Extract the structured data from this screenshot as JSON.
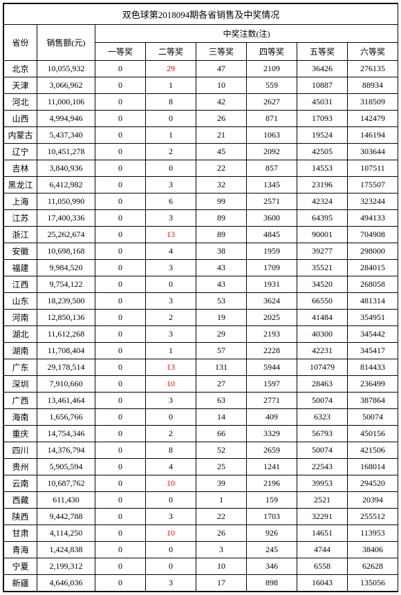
{
  "title": "双色球第2018094期各省销售及中奖情况",
  "headers": {
    "province": "省份",
    "sales": "销售额(元)",
    "prizeCount": "中奖注数(注)",
    "prizes": [
      "一等奖",
      "二等奖",
      "三等奖",
      "四等奖",
      "五等奖",
      "六等奖"
    ]
  },
  "rows": [
    {
      "province": "北京",
      "sales": "10,055,932",
      "p1": "0",
      "p2": "29",
      "p2red": true,
      "p3": "47",
      "p4": "2109",
      "p5": "36426",
      "p6": "276135"
    },
    {
      "province": "天津",
      "sales": "3,066,962",
      "p1": "0",
      "p2": "1",
      "p3": "10",
      "p4": "559",
      "p5": "10887",
      "p6": "88934"
    },
    {
      "province": "河北",
      "sales": "11,000,106",
      "p1": "0",
      "p2": "8",
      "p3": "42",
      "p4": "2627",
      "p5": "45031",
      "p6": "318509"
    },
    {
      "province": "山西",
      "sales": "4,994,946",
      "p1": "0",
      "p2": "0",
      "p3": "26",
      "p4": "871",
      "p5": "17093",
      "p6": "142479"
    },
    {
      "province": "内蒙古",
      "sales": "5,437,340",
      "p1": "0",
      "p2": "1",
      "p3": "21",
      "p4": "1063",
      "p5": "19524",
      "p6": "146194"
    },
    {
      "province": "辽宁",
      "sales": "10,451,278",
      "p1": "0",
      "p2": "2",
      "p3": "45",
      "p4": "2092",
      "p5": "42505",
      "p6": "303644"
    },
    {
      "province": "吉林",
      "sales": "3,840,936",
      "p1": "0",
      "p2": "0",
      "p3": "22",
      "p4": "857",
      "p5": "14553",
      "p6": "107511"
    },
    {
      "province": "黑龙江",
      "sales": "6,412,982",
      "p1": "0",
      "p2": "3",
      "p3": "32",
      "p4": "1345",
      "p5": "23196",
      "p6": "175507"
    },
    {
      "province": "上海",
      "sales": "11,050,990",
      "p1": "0",
      "p2": "6",
      "p3": "99",
      "p4": "2571",
      "p5": "42324",
      "p6": "323244"
    },
    {
      "province": "江苏",
      "sales": "17,400,336",
      "p1": "0",
      "p2": "3",
      "p3": "89",
      "p4": "3600",
      "p5": "64395",
      "p6": "494133"
    },
    {
      "province": "浙江",
      "sales": "25,262,674",
      "p1": "0",
      "p2": "13",
      "p2red": true,
      "p3": "89",
      "p4": "4845",
      "p5": "90001",
      "p6": "704908"
    },
    {
      "province": "安徽",
      "sales": "10,698,168",
      "p1": "0",
      "p2": "4",
      "p3": "38",
      "p4": "1959",
      "p5": "39277",
      "p6": "298000"
    },
    {
      "province": "福建",
      "sales": "9,984,520",
      "p1": "0",
      "p2": "3",
      "p3": "43",
      "p4": "1709",
      "p5": "35521",
      "p6": "284015"
    },
    {
      "province": "江西",
      "sales": "9,754,122",
      "p1": "0",
      "p2": "0",
      "p3": "43",
      "p4": "1931",
      "p5": "34520",
      "p6": "268058"
    },
    {
      "province": "山东",
      "sales": "18,239,500",
      "p1": "0",
      "p2": "3",
      "p3": "53",
      "p4": "3624",
      "p5": "66550",
      "p6": "481314"
    },
    {
      "province": "河南",
      "sales": "12,850,136",
      "p1": "0",
      "p2": "2",
      "p3": "19",
      "p4": "2025",
      "p5": "41484",
      "p6": "354951"
    },
    {
      "province": "湖北",
      "sales": "11,612,268",
      "p1": "0",
      "p2": "3",
      "p3": "29",
      "p4": "2193",
      "p5": "40300",
      "p6": "345442"
    },
    {
      "province": "湖南",
      "sales": "11,708,404",
      "p1": "0",
      "p2": "1",
      "p3": "57",
      "p4": "2228",
      "p5": "42231",
      "p6": "345417"
    },
    {
      "province": "广东",
      "sales": "29,178,514",
      "p1": "0",
      "p2": "13",
      "p2red": true,
      "p3": "131",
      "p4": "5944",
      "p5": "107479",
      "p6": "814433"
    },
    {
      "province": "深圳",
      "sales": "7,910,660",
      "p1": "0",
      "p2": "10",
      "p2red": true,
      "p3": "27",
      "p4": "1597",
      "p5": "28463",
      "p6": "236499"
    },
    {
      "province": "广西",
      "sales": "13,461,464",
      "p1": "0",
      "p2": "3",
      "p3": "63",
      "p4": "2771",
      "p5": "50074",
      "p6": "387864"
    },
    {
      "province": "海南",
      "sales": "1,656,766",
      "p1": "0",
      "p2": "0",
      "p3": "14",
      "p4": "409",
      "p5": "6323",
      "p6": "50074"
    },
    {
      "province": "重庆",
      "sales": "14,754,346",
      "p1": "0",
      "p2": "2",
      "p3": "66",
      "p4": "3329",
      "p5": "56793",
      "p6": "450156"
    },
    {
      "province": "四川",
      "sales": "14,376,794",
      "p1": "0",
      "p2": "8",
      "p3": "52",
      "p4": "2659",
      "p5": "50074",
      "p6": "421506"
    },
    {
      "province": "贵州",
      "sales": "5,905,594",
      "p1": "0",
      "p2": "4",
      "p3": "25",
      "p4": "1241",
      "p5": "22543",
      "p6": "168014"
    },
    {
      "province": "云南",
      "sales": "10,687,762",
      "p1": "0",
      "p2": "10",
      "p2red": true,
      "p3": "39",
      "p4": "2196",
      "p5": "39953",
      "p6": "294520"
    },
    {
      "province": "西藏",
      "sales": "611,430",
      "p1": "0",
      "p2": "0",
      "p3": "1",
      "p4": "159",
      "p5": "2521",
      "p6": "20394"
    },
    {
      "province": "陕西",
      "sales": "9,442,788",
      "p1": "0",
      "p2": "3",
      "p3": "22",
      "p4": "1703",
      "p5": "32291",
      "p6": "255512"
    },
    {
      "province": "甘肃",
      "sales": "4,114,250",
      "p1": "0",
      "p2": "10",
      "p2red": true,
      "p3": "26",
      "p4": "926",
      "p5": "14651",
      "p6": "113953"
    },
    {
      "province": "青海",
      "sales": "1,424,838",
      "p1": "0",
      "p2": "0",
      "p3": "3",
      "p4": "245",
      "p5": "4744",
      "p6": "38406"
    },
    {
      "province": "宁夏",
      "sales": "2,199,312",
      "p1": "0",
      "p2": "0",
      "p3": "10",
      "p4": "346",
      "p5": "6558",
      "p6": "62628"
    },
    {
      "province": "新疆",
      "sales": "4,646,036",
      "p1": "0",
      "p2": "3",
      "p3": "17",
      "p4": "898",
      "p5": "16043",
      "p6": "135056"
    }
  ]
}
